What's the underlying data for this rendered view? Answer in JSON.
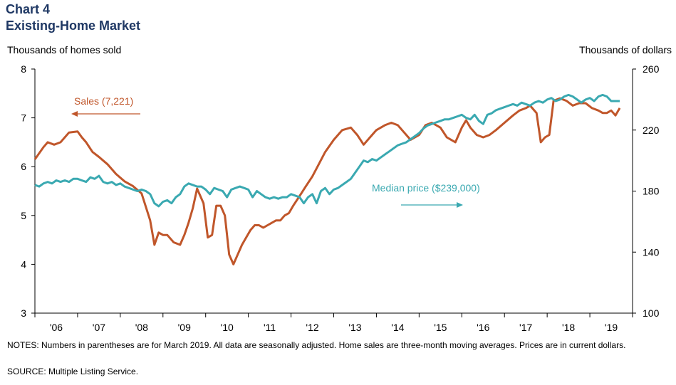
{
  "header": {
    "chart_number": "Chart 4",
    "title": "Existing-Home Market"
  },
  "footer": {
    "notes": "NOTES: Numbers in parentheses are for March 2019. All data are seasonally adjusted. Home sales are three-month moving averages. Prices are in current dollars.",
    "source": "SOURCE: Multiple Listing Service."
  },
  "colors": {
    "sales": "#c0562a",
    "price": "#3aa9b1",
    "title": "#1f3864"
  },
  "chart_data": {
    "type": "line",
    "left_axis_label": "Thousands  of homes sold",
    "right_axis_label": "Thousands  of dollars",
    "left_ylim": [
      3,
      8
    ],
    "left_ticks": [
      "3",
      "4",
      "5",
      "6",
      "7",
      "8"
    ],
    "right_ylim": [
      100,
      260
    ],
    "right_ticks": [
      "100",
      "140",
      "180",
      "220",
      "260"
    ],
    "x_range": [
      2005.5,
      2019.5
    ],
    "x_tick_labels": [
      "'06",
      "'07",
      "'08",
      "'09",
      "'10",
      "'11",
      "'12",
      "'13",
      "'14",
      "'15",
      "'16",
      "'17",
      "'18",
      "'19"
    ],
    "series": [
      {
        "name": "Sales (7,221)",
        "axis": "left",
        "color": "#c0562a",
        "x": [
          2005.5,
          2005.7,
          2005.8,
          2005.95,
          2006.1,
          2006.3,
          2006.5,
          2006.6,
          2006.7,
          2006.85,
          2007.0,
          2007.2,
          2007.4,
          2007.6,
          2007.8,
          2008.0,
          2008.2,
          2008.3,
          2008.4,
          2008.5,
          2008.6,
          2008.75,
          2008.9,
          2009.0,
          2009.1,
          2009.2,
          2009.3,
          2009.45,
          2009.55,
          2009.65,
          2009.75,
          2009.85,
          2009.95,
          2010.0,
          2010.05,
          2010.15,
          2010.25,
          2010.35,
          2010.45,
          2010.55,
          2010.65,
          2010.75,
          2010.85,
          2010.95,
          2011.05,
          2011.15,
          2011.25,
          2011.35,
          2011.45,
          2011.55,
          2011.7,
          2011.85,
          2012.0,
          2012.15,
          2012.3,
          2012.5,
          2012.7,
          2012.9,
          2013.05,
          2013.2,
          2013.35,
          2013.5,
          2013.7,
          2013.85,
          2014.0,
          2014.15,
          2014.3,
          2014.5,
          2014.65,
          2014.8,
          2015.0,
          2015.15,
          2015.35,
          2015.5,
          2015.6,
          2015.7,
          2015.85,
          2016.0,
          2016.15,
          2016.3,
          2016.5,
          2016.7,
          2016.85,
          2017.0,
          2017.1,
          2017.15,
          2017.25,
          2017.35,
          2017.45,
          2017.55,
          2017.65,
          2017.8,
          2017.95,
          2018.1,
          2018.25,
          2018.4,
          2018.55,
          2018.7,
          2018.8,
          2018.9,
          2019.0,
          2019.1,
          2019.2
        ],
        "y": [
          6.15,
          6.4,
          6.5,
          6.45,
          6.5,
          6.7,
          6.72,
          6.6,
          6.5,
          6.3,
          6.2,
          6.05,
          5.85,
          5.7,
          5.6,
          5.45,
          4.9,
          4.4,
          4.65,
          4.6,
          4.6,
          4.45,
          4.4,
          4.6,
          4.85,
          5.15,
          5.55,
          5.25,
          4.55,
          4.6,
          5.2,
          5.2,
          5.0,
          4.6,
          4.2,
          4.0,
          4.2,
          4.4,
          4.55,
          4.7,
          4.8,
          4.8,
          4.75,
          4.8,
          4.85,
          4.9,
          4.9,
          5.0,
          5.05,
          5.2,
          5.4,
          5.6,
          5.8,
          6.05,
          6.3,
          6.55,
          6.75,
          6.8,
          6.65,
          6.45,
          6.6,
          6.75,
          6.85,
          6.9,
          6.85,
          6.7,
          6.55,
          6.65,
          6.85,
          6.9,
          6.8,
          6.6,
          6.5,
          6.8,
          6.95,
          6.8,
          6.65,
          6.6,
          6.65,
          6.75,
          6.9,
          7.05,
          7.15,
          7.2,
          7.25,
          7.2,
          7.1,
          6.5,
          6.6,
          6.65,
          7.35,
          7.4,
          7.35,
          7.25,
          7.3,
          7.3,
          7.2,
          7.15,
          7.1,
          7.1,
          7.15,
          7.05,
          7.2
        ]
      },
      {
        "name": "Median price ($239,000)",
        "axis": "right",
        "color": "#3aa9b1",
        "x": [
          2005.5,
          2005.6,
          2005.7,
          2005.8,
          2005.9,
          2006.0,
          2006.1,
          2006.2,
          2006.3,
          2006.4,
          2006.5,
          2006.6,
          2006.7,
          2006.8,
          2006.9,
          2007.0,
          2007.1,
          2007.2,
          2007.3,
          2007.4,
          2007.5,
          2007.6,
          2007.7,
          2007.8,
          2007.9,
          2008.0,
          2008.1,
          2008.2,
          2008.3,
          2008.4,
          2008.5,
          2008.6,
          2008.7,
          2008.8,
          2008.9,
          2009.0,
          2009.1,
          2009.2,
          2009.3,
          2009.4,
          2009.5,
          2009.6,
          2009.7,
          2009.8,
          2009.9,
          2010.0,
          2010.1,
          2010.2,
          2010.3,
          2010.4,
          2010.5,
          2010.6,
          2010.7,
          2010.8,
          2010.9,
          2011.0,
          2011.1,
          2011.2,
          2011.3,
          2011.4,
          2011.5,
          2011.6,
          2011.7,
          2011.8,
          2011.9,
          2012.0,
          2012.1,
          2012.2,
          2012.3,
          2012.4,
          2012.5,
          2012.6,
          2012.7,
          2012.8,
          2012.9,
          2013.0,
          2013.1,
          2013.2,
          2013.3,
          2013.4,
          2013.5,
          2013.6,
          2013.7,
          2013.8,
          2013.9,
          2014.0,
          2014.1,
          2014.2,
          2014.3,
          2014.4,
          2014.5,
          2014.6,
          2014.7,
          2014.8,
          2014.9,
          2015.0,
          2015.1,
          2015.2,
          2015.3,
          2015.4,
          2015.5,
          2015.6,
          2015.7,
          2015.8,
          2015.9,
          2016.0,
          2016.1,
          2016.2,
          2016.3,
          2016.4,
          2016.5,
          2016.6,
          2016.7,
          2016.8,
          2016.9,
          2017.0,
          2017.1,
          2017.2,
          2017.3,
          2017.4,
          2017.5,
          2017.6,
          2017.7,
          2017.8,
          2017.9,
          2018.0,
          2018.1,
          2018.2,
          2018.3,
          2018.4,
          2018.5,
          2018.6,
          2018.7,
          2018.8,
          2018.9,
          2019.0,
          2019.1,
          2019.2
        ],
        "y": [
          184,
          183,
          185,
          186,
          185,
          187,
          186,
          187,
          186,
          188,
          188,
          187,
          186,
          189,
          188,
          190,
          186,
          185,
          186,
          184,
          185,
          183,
          182,
          181,
          180,
          181,
          180,
          178,
          172,
          170,
          173,
          174,
          172,
          176,
          178,
          183,
          185,
          184,
          183,
          183,
          181,
          178,
          182,
          181,
          180,
          176,
          181,
          182,
          183,
          182,
          181,
          176,
          180,
          178,
          176,
          175,
          176,
          175,
          176,
          176,
          178,
          177,
          176,
          172,
          176,
          178,
          172,
          180,
          182,
          178,
          181,
          182,
          184,
          186,
          188,
          192,
          196,
          200,
          199,
          201,
          200,
          202,
          204,
          206,
          208,
          210,
          211,
          212,
          214,
          216,
          218,
          221,
          223,
          224,
          225,
          226,
          227,
          227,
          228,
          229,
          230,
          228,
          227,
          230,
          226,
          224,
          230,
          231,
          233,
          234,
          235,
          236,
          237,
          236,
          238,
          237,
          236,
          238,
          239,
          238,
          240,
          241,
          239,
          240,
          242,
          243,
          242,
          240,
          238,
          240,
          241,
          239,
          242,
          243,
          242,
          239,
          239,
          239
        ]
      }
    ],
    "annotations": {
      "sales_label": "Sales (7,221)",
      "price_label": "Median price ($239,000)"
    }
  }
}
